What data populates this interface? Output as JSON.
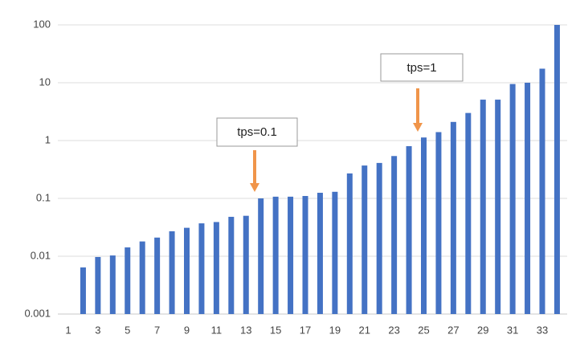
{
  "chart_data": {
    "type": "bar",
    "categories": [
      "1",
      null,
      "3",
      null,
      "5",
      null,
      "7",
      null,
      "9",
      null,
      "11",
      null,
      "13",
      null,
      "15",
      null,
      "17",
      null,
      "19",
      null,
      "21",
      null,
      "23",
      null,
      "25",
      null,
      "27",
      null,
      "29",
      null,
      "31",
      null,
      "33",
      null
    ],
    "values": [
      null,
      0.0064,
      0.0097,
      0.0103,
      0.0142,
      0.018,
      0.021,
      0.027,
      0.031,
      0.037,
      0.039,
      0.048,
      0.05,
      0.1,
      0.107,
      0.107,
      0.11,
      0.125,
      0.13,
      0.27,
      0.37,
      0.41,
      0.54,
      0.8,
      1.13,
      1.4,
      2.1,
      3.0,
      5.1,
      5.1,
      9.5,
      10,
      17.5,
      100
    ],
    "color": "#4472c4",
    "log_scale": true,
    "ylim": [
      0.001,
      100
    ],
    "yticks": [
      0.001,
      0.01,
      0.1,
      1,
      10,
      100
    ],
    "grid": true,
    "annotations": [
      "tps=0.1",
      "tps=1"
    ]
  }
}
